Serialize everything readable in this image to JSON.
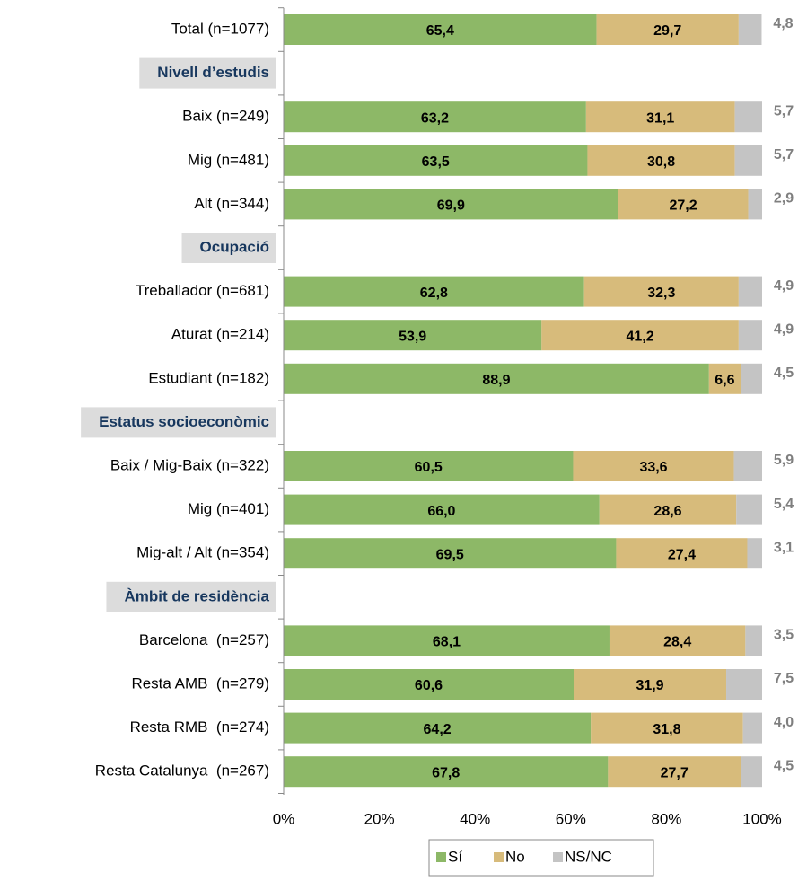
{
  "chart_data": {
    "type": "stacked-bar-horizontal",
    "categories": [
      "Total (n=1077)",
      "Nivell d’estudis",
      "Baix (n=249)",
      "Mig (n=481)",
      "Alt (n=344)",
      "Ocupació",
      "Treballador (n=681)",
      "Aturat (n=214)",
      "Estudiant (n=182)",
      "Estatus socioeconòmic",
      "Baix / Mig-Baix (n=322)",
      "Mig (n=401)",
      "Mig-alt / Alt (n=354)",
      "Àmbit de residència",
      "Barcelona  (n=257)",
      "Resta AMB  (n=279)",
      "Resta RMB  (n=274)",
      "Resta Catalunya  (n=267)"
    ],
    "series": [
      {
        "name": "Sí",
        "color": "#8db867",
        "values": [
          65.4,
          null,
          63.2,
          63.5,
          69.9,
          null,
          62.8,
          53.9,
          88.9,
          null,
          60.5,
          66.0,
          69.5,
          null,
          68.1,
          60.6,
          64.2,
          67.8
        ],
        "value_labels": [
          "65,4",
          null,
          "63,2",
          "63,5",
          "69,9",
          null,
          "62,8",
          "53,9",
          "88,9",
          null,
          "60,5",
          "66,0",
          "69,5",
          null,
          "68,1",
          "60,6",
          "64,2",
          "67,8"
        ]
      },
      {
        "name": "No",
        "color": "#d7bb7b",
        "values": [
          29.7,
          null,
          31.1,
          30.8,
          27.2,
          null,
          32.3,
          41.2,
          6.6,
          null,
          33.6,
          28.6,
          27.4,
          null,
          28.4,
          31.9,
          31.8,
          27.7
        ],
        "value_labels": [
          "29,7",
          null,
          "31,1",
          "30,8",
          "27,2",
          null,
          "32,3",
          "41,2",
          "6,6",
          null,
          "33,6",
          "28,6",
          "27,4",
          null,
          "28,4",
          "31,9",
          "31,8",
          "27,7"
        ]
      },
      {
        "name": "NS/NC",
        "color": "#c4c4c4",
        "values": [
          4.8,
          null,
          5.7,
          5.7,
          2.9,
          null,
          4.9,
          4.9,
          4.5,
          null,
          5.9,
          5.4,
          3.1,
          null,
          3.5,
          7.5,
          4.0,
          4.5
        ],
        "value_labels": [
          "4,8",
          null,
          "5,7",
          "5,7",
          "2,9",
          null,
          "4,9",
          "4,9",
          "4,5",
          null,
          "5,9",
          "5,4",
          "3,1",
          null,
          "3,5",
          "7,5",
          "4,0",
          "4,5"
        ]
      }
    ],
    "xlim": [
      0,
      100
    ],
    "xticks": [
      {
        "value": 0,
        "label": "0%"
      },
      {
        "value": 20,
        "label": "20%"
      },
      {
        "value": 40,
        "label": "40%"
      },
      {
        "value": 60,
        "label": "60%"
      },
      {
        "value": 80,
        "label": "80%"
      },
      {
        "value": 100,
        "label": "100%"
      }
    ],
    "legend": "bottom"
  }
}
